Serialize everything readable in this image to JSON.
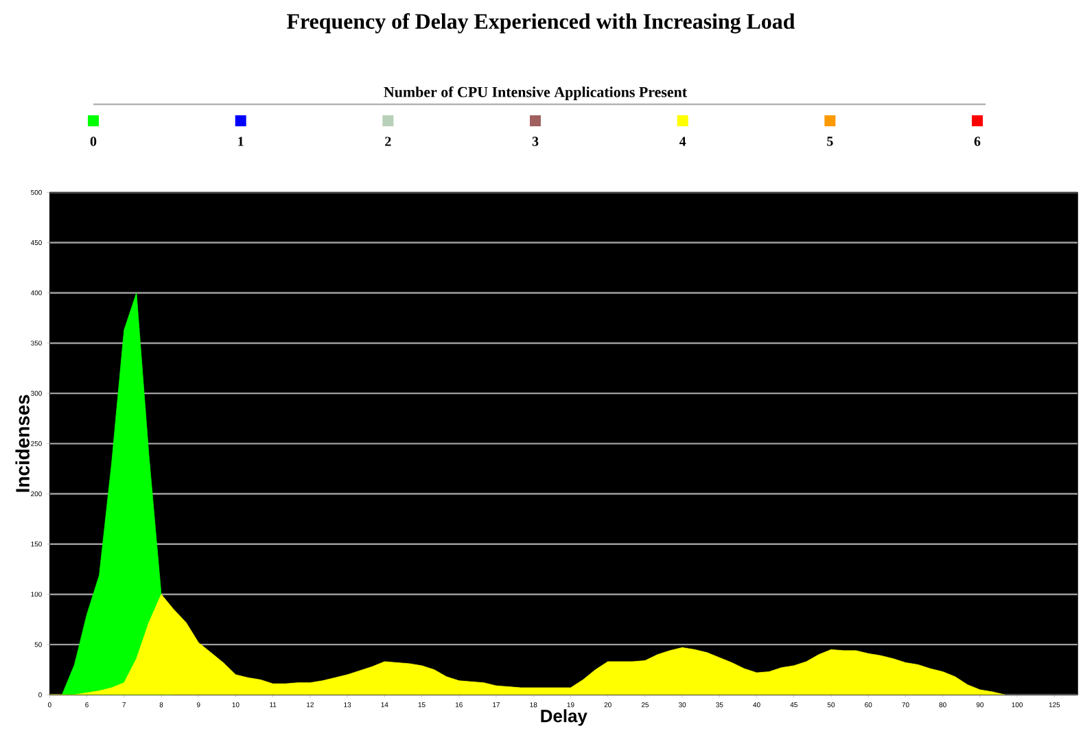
{
  "chart_data": {
    "type": "area",
    "title": "Frequency of Delay Experienced with Increasing Load",
    "legend_title": "Number of CPU Intensive Applications Present",
    "xlabel": "Delay",
    "ylabel": "Incidenses",
    "categories": [
      "0",
      null,
      null,
      "6",
      null,
      null,
      "7",
      null,
      null,
      "8",
      null,
      null,
      "9",
      null,
      null,
      "10",
      null,
      null,
      "11",
      null,
      null,
      "12",
      null,
      null,
      "13",
      null,
      null,
      "14",
      null,
      null,
      "15",
      null,
      null,
      "16",
      null,
      null,
      "17",
      null,
      null,
      "18",
      null,
      null,
      "19",
      null,
      null,
      "20",
      null,
      null,
      "25",
      null,
      null,
      "30",
      null,
      null,
      "35",
      null,
      null,
      "40",
      null,
      null,
      "45",
      null,
      null,
      "50",
      null,
      null,
      "60",
      null,
      null,
      "70",
      null,
      null,
      "80",
      null,
      null,
      "90",
      null,
      null,
      "100",
      null,
      null,
      "125"
    ],
    "ylim": [
      0,
      500
    ],
    "yticks": [
      0,
      50,
      100,
      150,
      200,
      250,
      300,
      350,
      400,
      450,
      500
    ],
    "grid": "y",
    "legend": "top",
    "series": [
      {
        "name": "0",
        "color": "#00ff00",
        "values": [
          null,
          0,
          30,
          80,
          119,
          231,
          363,
          400,
          239,
          100,
          0,
          null,
          null,
          null,
          null,
          null,
          null,
          null,
          null,
          null,
          null,
          null,
          null,
          null,
          null,
          null,
          null,
          null,
          null,
          null,
          null,
          null,
          null,
          null,
          null,
          null,
          null,
          null,
          null,
          null,
          null,
          null,
          null,
          null,
          null,
          null,
          null,
          null,
          null,
          null,
          null,
          null,
          null,
          null,
          null,
          null,
          null,
          null,
          null,
          null,
          null,
          null,
          null,
          null,
          null,
          null,
          null,
          null,
          null,
          null,
          null,
          null,
          null,
          null,
          null,
          null,
          null,
          null,
          null,
          null,
          null,
          null
        ]
      },
      {
        "name": "1",
        "color": "#0000ff",
        "values": [
          null,
          null,
          null,
          null,
          null,
          null,
          null,
          null,
          null,
          null,
          null,
          null,
          null,
          null,
          null,
          null,
          null,
          null,
          null,
          null,
          null,
          null,
          null,
          null,
          null,
          null,
          null,
          null,
          null,
          null,
          null,
          null,
          null,
          null,
          null,
          null,
          null,
          null,
          null,
          null,
          null,
          null,
          null,
          null,
          null,
          null,
          null,
          null,
          null,
          null,
          null,
          null,
          null,
          null,
          null,
          null,
          null,
          null,
          null,
          null,
          null,
          null,
          null,
          null,
          null,
          null,
          null,
          null,
          null,
          null,
          null,
          null,
          null,
          null,
          null,
          null,
          null,
          null,
          null,
          null,
          null,
          null
        ]
      },
      {
        "name": "2",
        "color": "#b8d0b8",
        "values": [
          null,
          null,
          null,
          null,
          null,
          null,
          null,
          null,
          null,
          null,
          null,
          null,
          null,
          null,
          null,
          null,
          null,
          null,
          null,
          null,
          null,
          null,
          null,
          null,
          null,
          null,
          null,
          null,
          null,
          null,
          null,
          null,
          null,
          null,
          null,
          null,
          null,
          null,
          null,
          null,
          null,
          null,
          null,
          null,
          null,
          null,
          null,
          null,
          null,
          null,
          null,
          null,
          null,
          null,
          null,
          null,
          null,
          null,
          null,
          null,
          null,
          null,
          null,
          null,
          null,
          null,
          null,
          null,
          null,
          null,
          null,
          null,
          null,
          null,
          null,
          null,
          null,
          null,
          null,
          null,
          null,
          null
        ]
      },
      {
        "name": "3",
        "color": "#a06060",
        "values": [
          null,
          null,
          null,
          null,
          null,
          null,
          null,
          null,
          null,
          null,
          null,
          null,
          null,
          null,
          null,
          null,
          null,
          null,
          null,
          null,
          null,
          null,
          null,
          null,
          null,
          null,
          null,
          null,
          null,
          null,
          null,
          null,
          null,
          null,
          null,
          null,
          null,
          null,
          null,
          null,
          null,
          null,
          null,
          null,
          null,
          null,
          null,
          null,
          null,
          null,
          null,
          null,
          null,
          null,
          null,
          null,
          null,
          null,
          null,
          null,
          null,
          null,
          null,
          null,
          null,
          null,
          null,
          null,
          null,
          null,
          null,
          null,
          null,
          null,
          null,
          null,
          null,
          null,
          null,
          null,
          null,
          null
        ]
      },
      {
        "name": "4",
        "color": "#ffff00",
        "values": [
          0,
          0,
          0,
          2,
          4,
          7,
          12,
          36,
          72,
          100,
          85,
          72,
          52,
          42,
          32,
          20,
          17,
          15,
          11,
          11,
          12,
          12,
          14,
          17,
          20,
          24,
          28,
          33,
          32,
          31,
          29,
          25,
          18,
          14,
          13,
          12,
          9,
          8,
          7,
          7,
          7,
          7,
          7,
          15,
          25,
          33,
          33,
          33,
          34,
          40,
          44,
          47,
          45,
          42,
          37,
          32,
          26,
          22,
          23,
          27,
          29,
          33,
          40,
          45,
          44,
          44,
          41,
          39,
          36,
          32,
          30,
          26,
          23,
          18,
          10,
          5,
          3,
          0,
          null,
          null,
          null,
          null
        ]
      },
      {
        "name": "5",
        "color": "#ff9900",
        "values": [
          null,
          null,
          null,
          null,
          null,
          null,
          null,
          null,
          null,
          null,
          null,
          null,
          null,
          null,
          null,
          null,
          null,
          null,
          null,
          null,
          null,
          null,
          null,
          null,
          null,
          null,
          null,
          null,
          null,
          null,
          null,
          null,
          null,
          null,
          null,
          null,
          null,
          null,
          null,
          null,
          null,
          null,
          null,
          null,
          null,
          null,
          null,
          null,
          null,
          null,
          null,
          null,
          null,
          null,
          null,
          null,
          null,
          null,
          null,
          null,
          null,
          null,
          null,
          null,
          null,
          null,
          null,
          null,
          null,
          null,
          null,
          null,
          null,
          null,
          null,
          null,
          null,
          null,
          null,
          null,
          null,
          null
        ]
      },
      {
        "name": "6",
        "color": "#ff0000",
        "values": [
          null,
          null,
          null,
          null,
          null,
          null,
          null,
          null,
          null,
          null,
          null,
          null,
          null,
          null,
          null,
          null,
          null,
          null,
          null,
          null,
          null,
          null,
          null,
          null,
          null,
          null,
          null,
          null,
          null,
          null,
          null,
          null,
          null,
          null,
          null,
          null,
          null,
          null,
          null,
          null,
          null,
          null,
          null,
          null,
          null,
          null,
          null,
          null,
          null,
          null,
          null,
          null,
          null,
          null,
          null,
          null,
          null,
          null,
          null,
          null,
          null,
          null,
          null,
          null,
          null,
          null,
          null,
          null,
          null,
          null,
          null,
          null,
          null,
          null,
          null,
          null,
          null,
          null,
          null,
          null,
          null,
          null
        ]
      }
    ]
  }
}
